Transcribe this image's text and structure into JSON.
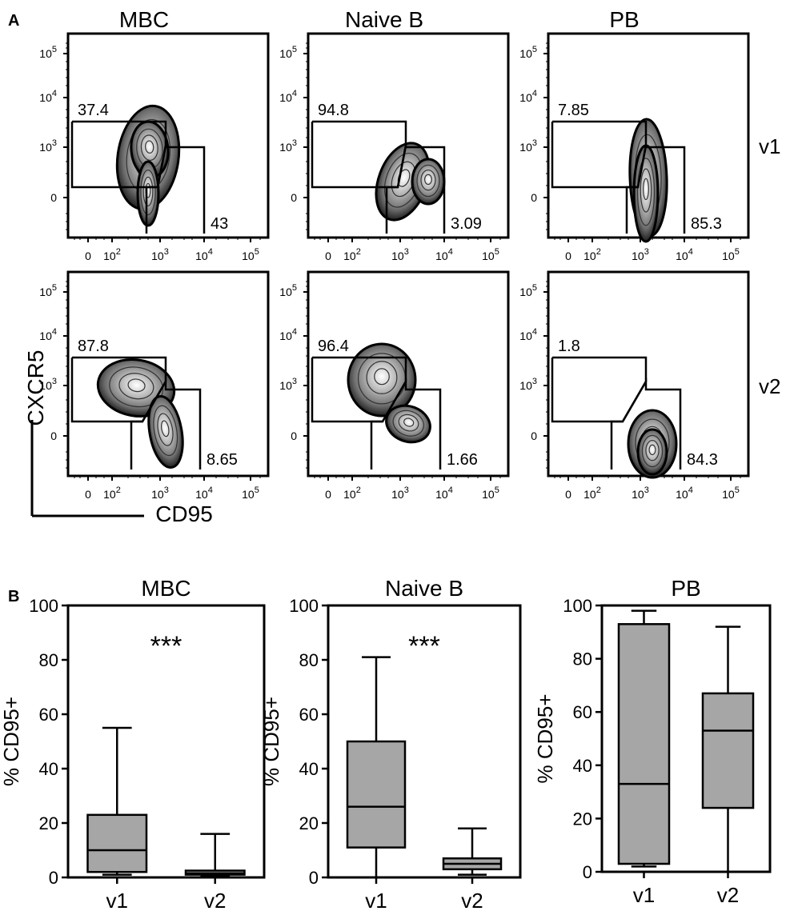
{
  "panel_labels": [
    "A",
    "B"
  ],
  "flow": {
    "columns": [
      "MBC",
      "Naive B",
      "PB"
    ],
    "rows": [
      "v1",
      "v2"
    ],
    "y_axis_label": "CXCR5",
    "x_axis_label": "CD95",
    "y_ticks": [
      {
        "base": "10",
        "exp": "5"
      },
      {
        "base": "10",
        "exp": "4"
      },
      {
        "base": "10",
        "exp": "3"
      },
      {
        "base": "0",
        "exp": ""
      }
    ],
    "x_ticks": [
      {
        "base": "0",
        "exp": ""
      },
      {
        "base": "10",
        "exp": "2"
      },
      {
        "base": "10",
        "exp": "3"
      },
      {
        "base": "10",
        "exp": "4"
      },
      {
        "base": "10",
        "exp": "5"
      }
    ],
    "gate_values": [
      [
        [
          "37.4",
          "43"
        ],
        [
          "94.8",
          "3.09"
        ],
        [
          "7.85",
          "85.3"
        ]
      ],
      [
        [
          "87.8",
          "8.65"
        ],
        [
          "96.4",
          "1.66"
        ],
        [
          "1.8",
          "84.3"
        ]
      ]
    ]
  },
  "chart_data": [
    {
      "type": "box",
      "title": "MBC",
      "ylabel": "% CD95+",
      "categories": [
        "v1",
        "v2"
      ],
      "ylim": [
        0,
        100
      ],
      "yticks": [
        0,
        20,
        40,
        60,
        80,
        100
      ],
      "boxes": [
        {
          "min": 1,
          "q1": 2,
          "median": 10,
          "q3": 23,
          "max": 55
        },
        {
          "min": 0.5,
          "q1": 1,
          "median": 1.5,
          "q3": 2.5,
          "max": 16
        }
      ],
      "annotation": "***",
      "fill": "#a6a6a6"
    },
    {
      "type": "box",
      "title": "Naive B",
      "ylabel": "% CD95+",
      "categories": [
        "v1",
        "v2"
      ],
      "ylim": [
        0,
        100
      ],
      "yticks": [
        0,
        20,
        40,
        60,
        80,
        100
      ],
      "boxes": [
        {
          "min": 0,
          "q1": 11,
          "median": 26,
          "q3": 50,
          "max": 81
        },
        {
          "min": 1,
          "q1": 3,
          "median": 5,
          "q3": 7,
          "max": 18
        }
      ],
      "annotation": "***",
      "fill": "#a6a6a6"
    },
    {
      "type": "box",
      "title": "PB",
      "ylabel": "% CD95+",
      "categories": [
        "v1",
        "v2"
      ],
      "ylim": [
        0,
        100
      ],
      "yticks": [
        0,
        20,
        40,
        60,
        80,
        100
      ],
      "boxes": [
        {
          "min": 2,
          "q1": 3,
          "median": 33,
          "q3": 93,
          "max": 98
        },
        {
          "min": 0,
          "q1": 24,
          "median": 53,
          "q3": 67,
          "max": 92
        }
      ],
      "annotation": "",
      "fill": "#a6a6a6"
    }
  ]
}
